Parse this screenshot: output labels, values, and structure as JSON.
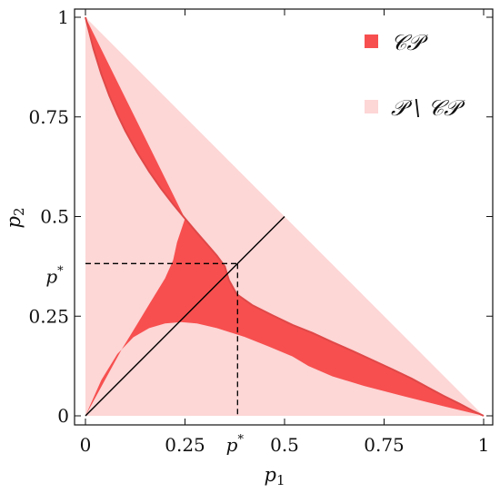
{
  "chart_data": {
    "type": "area",
    "xlabel": "p",
    "xlabel_sub": "1",
    "ylabel": "p",
    "ylabel_sub": "2",
    "xlim": [
      0,
      1
    ],
    "ylim": [
      0,
      1
    ],
    "x_ticks": [
      {
        "value": 0,
        "label": "0"
      },
      {
        "value": 0.25,
        "label": "0.25"
      },
      {
        "value": 0.5,
        "label": "0.5"
      },
      {
        "value": 0.75,
        "label": "0.75"
      },
      {
        "value": 1,
        "label": "1"
      }
    ],
    "y_ticks": [
      {
        "value": 0,
        "label": "0"
      },
      {
        "value": 0.25,
        "label": "0.25"
      },
      {
        "value": 0.5,
        "label": "0.5"
      },
      {
        "value": 0.75,
        "label": "0.75"
      },
      {
        "value": 1,
        "label": "1"
      }
    ],
    "p_star": 0.382,
    "p_star_label": "p",
    "p_star_sup": "*",
    "diagonal_segment": [
      [
        0,
        0
      ],
      [
        0.5,
        0.5
      ]
    ],
    "regions": [
      {
        "name": "CP",
        "legend": "𝒞𝒫",
        "color": "#f74f4f"
      },
      {
        "name": "P \\ CP",
        "legend": "𝒫 \\ 𝒞𝒫",
        "color": "#fdd6d6"
      }
    ],
    "cp_outer_boundary": [
      [
        0.0,
        1.0
      ],
      [
        0.02,
        0.921
      ],
      [
        0.04,
        0.857
      ],
      [
        0.06,
        0.803
      ],
      [
        0.08,
        0.757
      ],
      [
        0.1,
        0.715
      ],
      [
        0.13,
        0.661
      ],
      [
        0.16,
        0.613
      ],
      [
        0.19,
        0.57
      ],
      [
        0.22,
        0.531
      ],
      [
        0.25,
        0.495
      ],
      [
        0.27,
        0.471
      ],
      [
        0.29,
        0.448
      ],
      [
        0.31,
        0.425
      ],
      [
        0.33,
        0.402
      ],
      [
        0.35,
        0.375
      ],
      [
        0.36,
        0.341
      ],
      [
        0.38,
        0.305
      ],
      [
        0.42,
        0.277
      ],
      [
        0.47,
        0.252
      ],
      [
        0.52,
        0.228
      ],
      [
        0.57,
        0.208
      ],
      [
        0.62,
        0.185
      ],
      [
        0.67,
        0.163
      ],
      [
        0.72,
        0.14
      ],
      [
        0.77,
        0.117
      ],
      [
        0.82,
        0.093
      ],
      [
        0.86,
        0.071
      ],
      [
        0.9,
        0.05
      ],
      [
        0.94,
        0.03
      ],
      [
        0.97,
        0.014
      ],
      [
        1.0,
        0.0
      ]
    ],
    "cp_inner_boundary": [
      [
        1.0,
        0.0
      ],
      [
        0.9,
        0.024
      ],
      [
        0.8,
        0.049
      ],
      [
        0.7,
        0.075
      ],
      [
        0.62,
        0.099
      ],
      [
        0.56,
        0.125
      ],
      [
        0.52,
        0.149
      ],
      [
        0.46,
        0.174
      ],
      [
        0.4,
        0.198
      ],
      [
        0.33,
        0.22
      ],
      [
        0.28,
        0.232
      ],
      [
        0.24,
        0.235
      ],
      [
        0.2,
        0.232
      ],
      [
        0.16,
        0.22
      ],
      [
        0.12,
        0.197
      ],
      [
        0.08,
        0.155
      ],
      [
        0.04,
        0.09
      ],
      [
        0.0,
        0.0
      ],
      [
        0.09,
        0.165
      ],
      [
        0.13,
        0.23
      ],
      [
        0.16,
        0.28
      ],
      [
        0.2,
        0.345
      ],
      [
        0.22,
        0.39
      ],
      [
        0.23,
        0.435
      ],
      [
        0.25,
        0.495
      ]
    ]
  }
}
